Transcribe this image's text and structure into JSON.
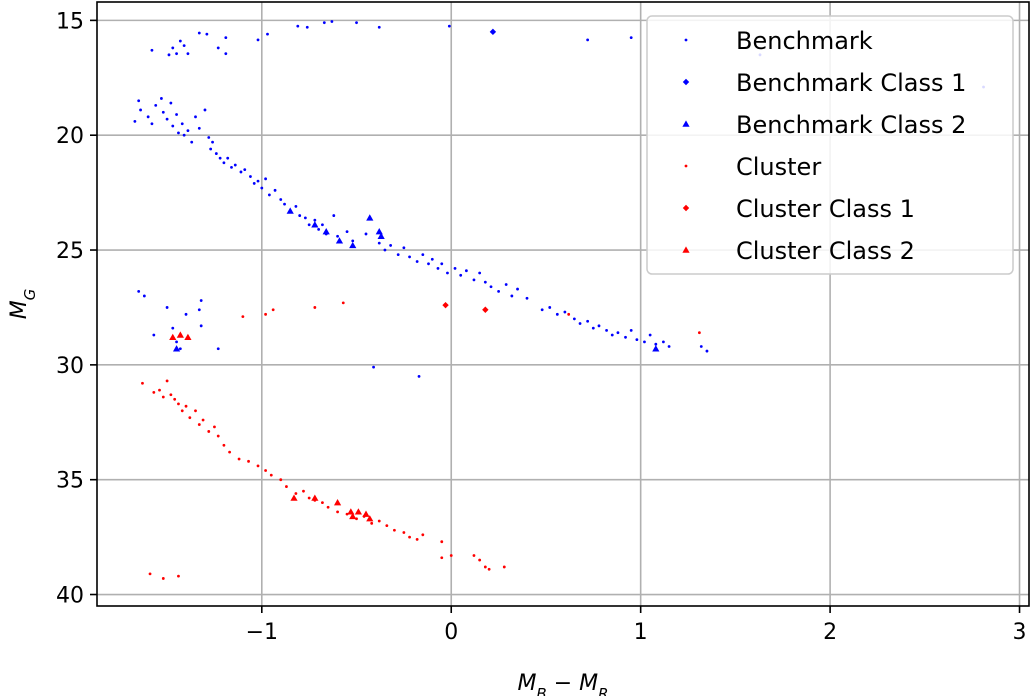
{
  "chart_data": {
    "type": "scatter",
    "title": "",
    "xlabel_parts": [
      "M",
      "B",
      " − ",
      "M",
      "R"
    ],
    "ylabel_parts": [
      "M",
      "G"
    ],
    "xlim": [
      -1.87,
      3.05
    ],
    "ylim": [
      40.5,
      14.2
    ],
    "y_inverted": true,
    "xticks": [
      -1,
      0,
      1,
      2,
      3
    ],
    "xtick_labels": [
      "−1",
      "0",
      "1",
      "2",
      "3"
    ],
    "yticks": [
      15,
      20,
      25,
      30,
      35,
      40
    ],
    "ytick_labels": [
      "15",
      "20",
      "25",
      "30",
      "35",
      "40"
    ],
    "grid": true,
    "legend_position": "top-right",
    "series": [
      {
        "name": "Benchmark",
        "color": "#0000ff",
        "marker": "dot",
        "points": [
          [
            -1.58,
            16.3
          ],
          [
            -1.49,
            16.5
          ],
          [
            -1.47,
            16.2
          ],
          [
            -1.45,
            16.45
          ],
          [
            -1.43,
            15.9
          ],
          [
            -1.41,
            16.1
          ],
          [
            -1.39,
            16.45
          ],
          [
            -1.33,
            15.55
          ],
          [
            -1.29,
            15.6
          ],
          [
            -1.23,
            16.2
          ],
          [
            -1.19,
            15.75
          ],
          [
            -1.19,
            16.45
          ],
          [
            -1.02,
            15.85
          ],
          [
            -0.97,
            15.6
          ],
          [
            -0.81,
            15.25
          ],
          [
            -0.76,
            15.3
          ],
          [
            -0.67,
            15.1
          ],
          [
            -0.63,
            15.05
          ],
          [
            -0.5,
            15.1
          ],
          [
            -0.38,
            15.3
          ],
          [
            -0.01,
            15.25
          ],
          [
            0.72,
            15.85
          ],
          [
            0.95,
            15.75
          ],
          [
            1.63,
            16.5
          ],
          [
            2.81,
            17.9
          ],
          [
            -1.67,
            19.4
          ],
          [
            -1.65,
            18.5
          ],
          [
            -1.64,
            18.9
          ],
          [
            -1.6,
            19.2
          ],
          [
            -1.58,
            19.5
          ],
          [
            -1.56,
            18.7
          ],
          [
            -1.53,
            18.4
          ],
          [
            -1.52,
            19.0
          ],
          [
            -1.5,
            19.3
          ],
          [
            -1.48,
            18.6
          ],
          [
            -1.47,
            19.6
          ],
          [
            -1.45,
            19.1
          ],
          [
            -1.44,
            19.9
          ],
          [
            -1.42,
            19.5
          ],
          [
            -1.41,
            20.0
          ],
          [
            -1.39,
            19.8
          ],
          [
            -1.37,
            20.3
          ],
          [
            -1.35,
            19.2
          ],
          [
            -1.33,
            19.7
          ],
          [
            -1.3,
            18.9
          ],
          [
            -1.28,
            20.1
          ],
          [
            -1.27,
            20.6
          ],
          [
            -1.26,
            20.3
          ],
          [
            -1.24,
            20.8
          ],
          [
            -1.22,
            21.0
          ],
          [
            -1.2,
            21.2
          ],
          [
            -1.18,
            21.0
          ],
          [
            -1.16,
            21.4
          ],
          [
            -1.14,
            21.3
          ],
          [
            -1.11,
            21.6
          ],
          [
            -1.09,
            21.5
          ],
          [
            -1.06,
            21.8
          ],
          [
            -1.04,
            22.1
          ],
          [
            -1.02,
            22.0
          ],
          [
            -1.0,
            22.3
          ],
          [
            -0.98,
            21.9
          ],
          [
            -0.96,
            22.6
          ],
          [
            -0.93,
            22.4
          ],
          [
            -0.9,
            22.8
          ],
          [
            -0.88,
            23.0
          ],
          [
            -0.85,
            23.3
          ],
          [
            -0.82,
            23.1
          ],
          [
            -0.8,
            23.5
          ],
          [
            -0.77,
            23.6
          ],
          [
            -0.75,
            23.9
          ],
          [
            -0.72,
            23.7
          ],
          [
            -0.7,
            24.1
          ],
          [
            -0.68,
            23.9
          ],
          [
            -0.66,
            24.3
          ],
          [
            -0.62,
            23.5
          ],
          [
            -0.6,
            24.4
          ],
          [
            -0.55,
            24.2
          ],
          [
            -0.52,
            24.6
          ],
          [
            -0.45,
            24.3
          ],
          [
            -0.38,
            24.7
          ],
          [
            -0.35,
            25.0
          ],
          [
            -0.32,
            24.8
          ],
          [
            -0.28,
            25.2
          ],
          [
            -0.25,
            24.9
          ],
          [
            -0.22,
            25.3
          ],
          [
            -0.18,
            25.5
          ],
          [
            -0.15,
            25.2
          ],
          [
            -0.12,
            25.6
          ],
          [
            -0.1,
            25.4
          ],
          [
            -0.07,
            25.8
          ],
          [
            -0.05,
            25.6
          ],
          [
            -0.02,
            26.0
          ],
          [
            0.02,
            25.8
          ],
          [
            0.05,
            26.1
          ],
          [
            0.08,
            25.9
          ],
          [
            0.12,
            26.3
          ],
          [
            0.15,
            26.0
          ],
          [
            0.18,
            26.4
          ],
          [
            0.21,
            26.6
          ],
          [
            0.25,
            26.8
          ],
          [
            0.29,
            26.5
          ],
          [
            0.32,
            27.0
          ],
          [
            0.35,
            26.7
          ],
          [
            0.4,
            27.1
          ],
          [
            0.48,
            27.6
          ],
          [
            0.52,
            27.5
          ],
          [
            0.56,
            27.8
          ],
          [
            0.6,
            27.7
          ],
          [
            0.65,
            28.0
          ],
          [
            0.68,
            28.2
          ],
          [
            0.72,
            28.1
          ],
          [
            0.75,
            28.4
          ],
          [
            0.78,
            28.3
          ],
          [
            0.82,
            28.5
          ],
          [
            0.85,
            28.7
          ],
          [
            0.88,
            28.6
          ],
          [
            0.92,
            28.8
          ],
          [
            0.95,
            28.5
          ],
          [
            0.98,
            28.9
          ],
          [
            1.02,
            29.0
          ],
          [
            1.05,
            28.7
          ],
          [
            1.08,
            29.1
          ],
          [
            1.12,
            29.0
          ],
          [
            1.15,
            29.2
          ],
          [
            1.32,
            29.2
          ],
          [
            1.35,
            29.4
          ],
          [
            -1.65,
            26.8
          ],
          [
            -1.62,
            27.0
          ],
          [
            -1.57,
            28.7
          ],
          [
            -1.5,
            27.5
          ],
          [
            -1.47,
            28.4
          ],
          [
            -1.45,
            29.0
          ],
          [
            -1.43,
            29.3
          ],
          [
            -1.4,
            27.8
          ],
          [
            -1.32,
            28.3
          ],
          [
            -1.32,
            27.2
          ],
          [
            -1.33,
            27.6
          ],
          [
            -1.23,
            29.3
          ],
          [
            -0.41,
            30.1
          ],
          [
            -0.17,
            30.5
          ]
        ]
      },
      {
        "name": "Benchmark Class 1",
        "color": "#0000ff",
        "marker": "diamond",
        "points": [
          [
            0.22,
            15.5
          ]
        ]
      },
      {
        "name": "Benchmark Class 2",
        "color": "#0000ff",
        "marker": "triangle",
        "points": [
          [
            -1.45,
            29.3
          ],
          [
            -0.85,
            23.3
          ],
          [
            -0.72,
            23.9
          ],
          [
            -0.66,
            24.2
          ],
          [
            -0.59,
            24.6
          ],
          [
            -0.52,
            24.8
          ],
          [
            -0.43,
            23.6
          ],
          [
            -0.38,
            24.2
          ],
          [
            -0.37,
            24.4
          ],
          [
            1.08,
            29.3
          ]
        ]
      },
      {
        "name": "Cluster",
        "color": "#ff0000",
        "marker": "dot",
        "points": [
          [
            -1.63,
            30.8
          ],
          [
            -1.57,
            31.2
          ],
          [
            -1.54,
            31.1
          ],
          [
            -1.52,
            31.4
          ],
          [
            -1.5,
            30.7
          ],
          [
            -1.48,
            31.3
          ],
          [
            -1.46,
            31.5
          ],
          [
            -1.44,
            31.7
          ],
          [
            -1.42,
            32.0
          ],
          [
            -1.4,
            31.8
          ],
          [
            -1.38,
            32.3
          ],
          [
            -1.35,
            32.0
          ],
          [
            -1.33,
            32.6
          ],
          [
            -1.31,
            32.4
          ],
          [
            -1.28,
            32.9
          ],
          [
            -1.25,
            32.7
          ],
          [
            -1.23,
            33.1
          ],
          [
            -1.2,
            33.5
          ],
          [
            -1.17,
            33.8
          ],
          [
            -1.12,
            34.1
          ],
          [
            -1.07,
            34.2
          ],
          [
            -1.02,
            34.4
          ],
          [
            -0.98,
            34.6
          ],
          [
            -0.95,
            34.8
          ],
          [
            -0.9,
            35.0
          ],
          [
            -0.87,
            35.3
          ],
          [
            -0.82,
            35.6
          ],
          [
            -0.78,
            35.5
          ],
          [
            -0.75,
            35.8
          ],
          [
            -0.72,
            35.9
          ],
          [
            -0.68,
            36.0
          ],
          [
            -0.65,
            36.2
          ],
          [
            -0.6,
            36.4
          ],
          [
            -0.55,
            36.5
          ],
          [
            -0.5,
            36.7
          ],
          [
            -0.46,
            36.6
          ],
          [
            -0.42,
            36.9
          ],
          [
            -0.38,
            36.8
          ],
          [
            -0.34,
            37.0
          ],
          [
            -0.3,
            37.2
          ],
          [
            -0.25,
            37.3
          ],
          [
            -0.22,
            37.5
          ],
          [
            -0.18,
            37.6
          ],
          [
            -0.15,
            37.4
          ],
          [
            -0.05,
            37.7
          ],
          [
            -0.05,
            38.4
          ],
          [
            0.0,
            38.3
          ],
          [
            0.12,
            38.3
          ],
          [
            0.15,
            38.5
          ],
          [
            0.18,
            38.8
          ],
          [
            0.2,
            38.9
          ],
          [
            0.28,
            38.8
          ],
          [
            -1.59,
            39.1
          ],
          [
            -1.52,
            39.3
          ],
          [
            -1.44,
            39.2
          ],
          [
            -1.1,
            27.9
          ],
          [
            -0.98,
            27.8
          ],
          [
            -0.94,
            27.6
          ],
          [
            -0.72,
            27.5
          ],
          [
            -0.57,
            27.3
          ],
          [
            0.62,
            27.8
          ],
          [
            1.31,
            28.6
          ]
        ]
      },
      {
        "name": "Cluster  Class 1",
        "color": "#ff0000",
        "marker": "diamond",
        "points": [
          [
            -0.03,
            27.4
          ],
          [
            0.18,
            27.6
          ]
        ]
      },
      {
        "name": "Cluster  Class 2",
        "color": "#ff0000",
        "marker": "triangle",
        "points": [
          [
            -1.47,
            28.8
          ],
          [
            -1.43,
            28.7
          ],
          [
            -1.39,
            28.8
          ],
          [
            -0.83,
            35.8
          ],
          [
            -0.72,
            35.8
          ],
          [
            -0.6,
            36.0
          ],
          [
            -0.53,
            36.4
          ],
          [
            -0.52,
            36.6
          ],
          [
            -0.49,
            36.4
          ],
          [
            -0.45,
            36.5
          ],
          [
            -0.43,
            36.7
          ]
        ]
      }
    ]
  }
}
